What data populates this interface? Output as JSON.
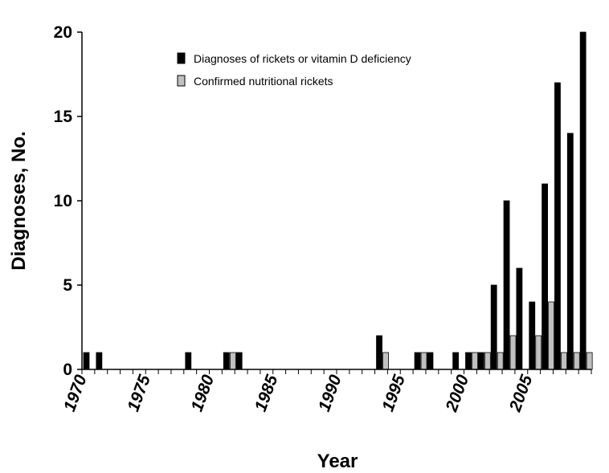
{
  "chart_data": {
    "type": "bar",
    "title": "",
    "xlabel": "Year",
    "ylabel": "Diagnoses, No.",
    "x": [
      1970,
      1971,
      1972,
      1973,
      1974,
      1975,
      1976,
      1977,
      1978,
      1979,
      1980,
      1981,
      1982,
      1983,
      1984,
      1985,
      1986,
      1987,
      1988,
      1989,
      1990,
      1991,
      1992,
      1993,
      1994,
      1995,
      1996,
      1997,
      1998,
      1999,
      2000,
      2001,
      2002,
      2003,
      2004,
      2005,
      2006,
      2007,
      2008,
      2009
    ],
    "x_tick_labels": [
      "1970",
      "1975",
      "1980",
      "1985",
      "1990",
      "1995",
      "2000",
      "2005"
    ],
    "y_ticks": [
      0,
      5,
      10,
      15,
      20
    ],
    "ylim": [
      0,
      20
    ],
    "grid": false,
    "legend_position": "top-center",
    "series": [
      {
        "name": "Diagnoses of rickets or vitamin D deficiency",
        "color": "#000000",
        "values": [
          1,
          1,
          0,
          0,
          0,
          0,
          0,
          0,
          1,
          0,
          0,
          1,
          1,
          0,
          0,
          0,
          0,
          0,
          0,
          0,
          0,
          0,
          0,
          2,
          0,
          0,
          1,
          1,
          0,
          1,
          1,
          1,
          5,
          10,
          6,
          4,
          11,
          17,
          14,
          20
        ]
      },
      {
        "name": "Confirmed nutritional rickets",
        "color": "#c0c0c0",
        "values": [
          0,
          0,
          0,
          0,
          0,
          0,
          0,
          0,
          0,
          0,
          0,
          1,
          0,
          0,
          0,
          0,
          0,
          0,
          0,
          0,
          0,
          0,
          0,
          1,
          0,
          0,
          1,
          0,
          0,
          0,
          1,
          1,
          1,
          2,
          0,
          2,
          4,
          1,
          1,
          1
        ]
      }
    ]
  }
}
